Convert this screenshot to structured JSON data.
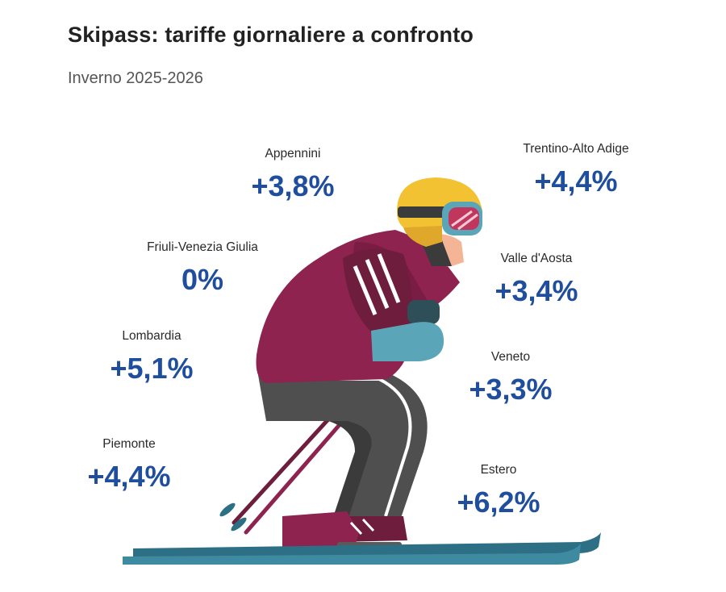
{
  "title": "Skipass: tariffe giornaliere a confronto",
  "subtitle": "Inverno 2025-2026",
  "colors": {
    "value": "#1f4e9e",
    "jacket": "#8e2350",
    "pants": "#4a4a4a",
    "helmet": "#f2c232",
    "gloves": "#5aa6b8",
    "skis": "#2d6f84"
  },
  "regions": {
    "appennini": {
      "name": "Appennini",
      "value": "+3,8%"
    },
    "trentino": {
      "name": "Trentino-Alto Adige",
      "value": "+4,4%"
    },
    "friuli": {
      "name": "Friuli-Venezia Giulia",
      "value": "0%"
    },
    "valle": {
      "name": "Valle d'Aosta",
      "value": "+3,4%"
    },
    "lombardia": {
      "name": "Lombardia",
      "value": "+5,1%"
    },
    "veneto": {
      "name": "Veneto",
      "value": "+3,3%"
    },
    "piemonte": {
      "name": "Piemonte",
      "value": "+4,4%"
    },
    "estero": {
      "name": "Estero",
      "value": "+6,2%"
    }
  }
}
